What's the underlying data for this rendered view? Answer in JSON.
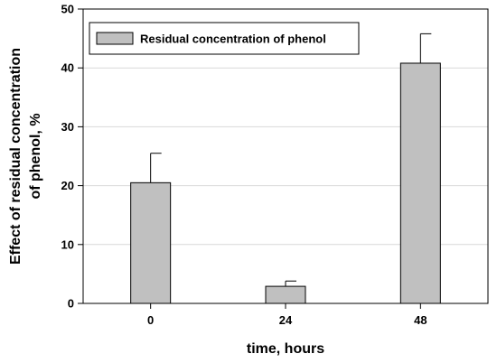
{
  "chart_data": {
    "type": "bar",
    "categories": [
      "0",
      "24",
      "48"
    ],
    "series": [
      {
        "name": "Residual concentration of phenol",
        "values": [
          20.5,
          2.9,
          40.8
        ],
        "errors": [
          5.0,
          0.9,
          5.0
        ]
      }
    ],
    "xlabel": "time, hours",
    "ylabel_lines": [
      "Effect of residual concentration",
      "of phenol, %"
    ],
    "ylim": [
      0,
      50
    ],
    "yticks": [
      0,
      10,
      20,
      30,
      40,
      50
    ],
    "grid": "horizontal",
    "legend_position": "top-left",
    "colors": {
      "bar": "#c0c0c0",
      "grid": "#d9d9d9",
      "axis": "#000000"
    }
  }
}
